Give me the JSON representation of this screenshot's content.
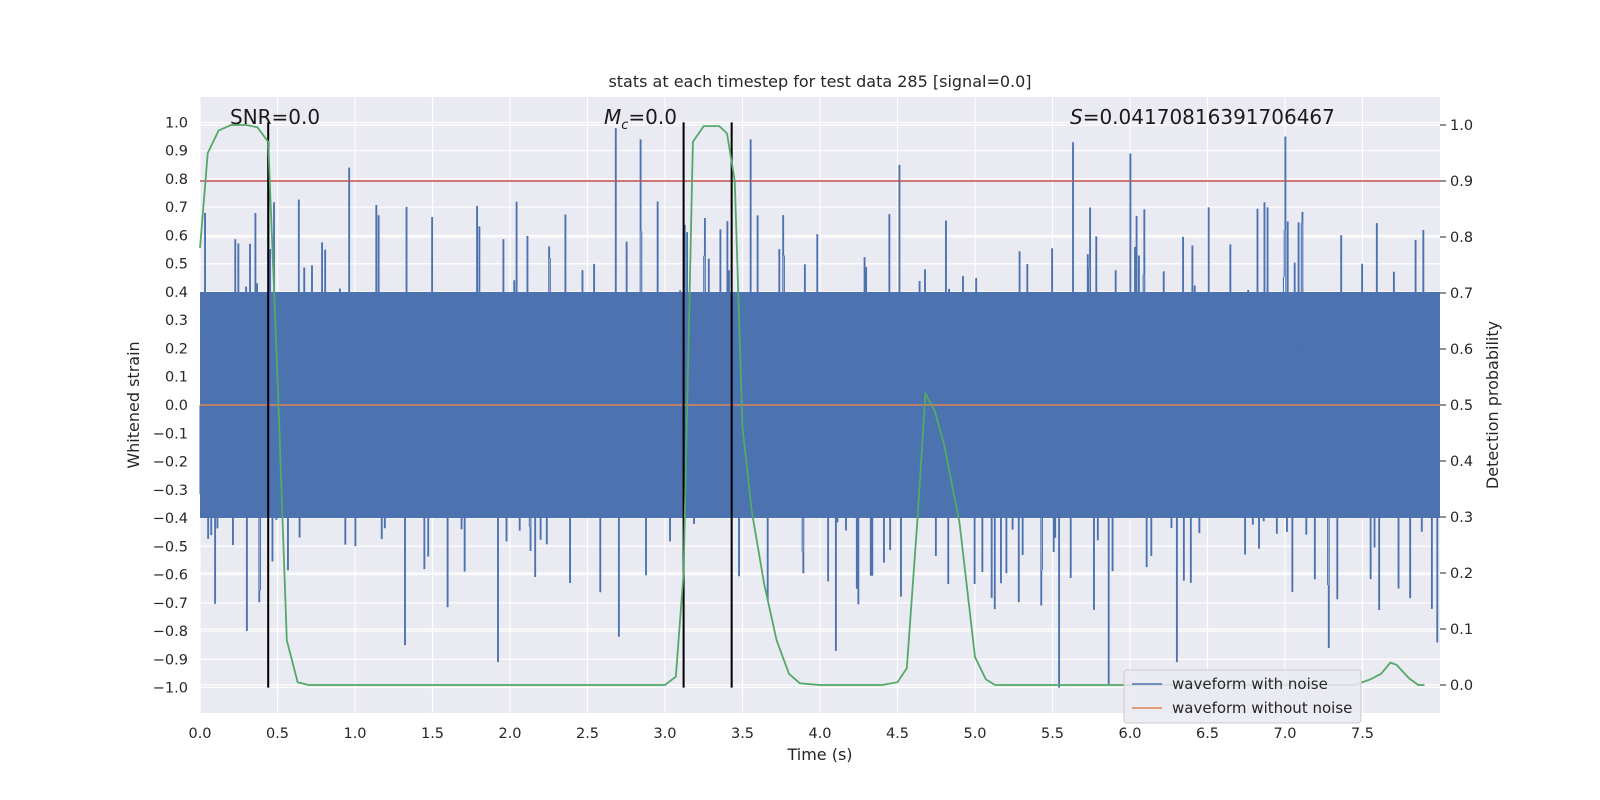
{
  "chart_data": {
    "type": "line",
    "title": "stats at each timestep for test data 285 [signal=0.0]",
    "xlabel": "Time (s)",
    "ylabel": "Whitened strain",
    "y2label": "Detection probability",
    "xlim": [
      0.0,
      8.0
    ],
    "ylim": [
      -1.09,
      1.09
    ],
    "y2lim": [
      -0.05,
      1.05
    ],
    "x_ticks": [
      0.0,
      0.5,
      1.0,
      1.5,
      2.0,
      2.5,
      3.0,
      3.5,
      4.0,
      4.5,
      5.0,
      5.5,
      6.0,
      6.5,
      7.0,
      7.5
    ],
    "x_tick_labels": [
      "0.0",
      "0.5",
      "1.0",
      "1.5",
      "2.0",
      "2.5",
      "3.0",
      "3.5",
      "4.0",
      "4.5",
      "5.0",
      "5.5",
      "6.0",
      "6.5",
      "7.0",
      "7.5"
    ],
    "y_ticks": [
      -1.0,
      -0.9,
      -0.8,
      -0.7,
      -0.6,
      -0.5,
      -0.4,
      -0.3,
      -0.2,
      -0.1,
      0.0,
      0.1,
      0.2,
      0.3,
      0.4,
      0.5,
      0.6,
      0.7,
      0.8,
      0.9,
      1.0
    ],
    "y_tick_labels": [
      "−1.0",
      "−0.9",
      "−0.8",
      "−0.7",
      "−0.6",
      "−0.5",
      "−0.4",
      "−0.3",
      "−0.2",
      "−0.1",
      "0.0",
      "0.1",
      "0.2",
      "0.3",
      "0.4",
      "0.5",
      "0.6",
      "0.7",
      "0.8",
      "0.9",
      "1.0"
    ],
    "y2_ticks": [
      0.0,
      0.1,
      0.2,
      0.3,
      0.4,
      0.5,
      0.6,
      0.7,
      0.8,
      0.9,
      1.0
    ],
    "y2_tick_labels": [
      "0.0",
      "0.1",
      "0.2",
      "0.3",
      "0.4",
      "0.5",
      "0.6",
      "0.7",
      "0.8",
      "0.9",
      "1.0"
    ],
    "grid": true,
    "threshold": 0.9,
    "vlines": [
      0.44,
      3.12,
      3.43
    ],
    "annotations": {
      "snr": "SNR=0.0",
      "mc_symbol": "M",
      "mc_sub": "c",
      "mc_value": "=0.0",
      "s_symbol": "S",
      "s_value": "=0.04170816391706467"
    },
    "legend": {
      "placement": "lower-right",
      "entries": [
        "waveform with noise",
        "waveform without noise"
      ]
    },
    "series": [
      {
        "name": "waveform with noise",
        "axis": "left",
        "kind": "noise",
        "band": [
          -0.4,
          0.4
        ],
        "samples": 1600,
        "spikes": [
          [
            0.03,
            0.68
          ],
          [
            0.44,
            0.93
          ],
          [
            0.96,
            0.84
          ],
          [
            2.68,
            0.98
          ],
          [
            2.84,
            0.94
          ],
          [
            3.55,
            0.94
          ],
          [
            4.51,
            0.85
          ],
          [
            5.63,
            0.93
          ],
          [
            6.0,
            0.89
          ],
          [
            7.0,
            0.95
          ],
          [
            0.3,
            -0.8
          ],
          [
            1.32,
            -0.85
          ],
          [
            1.92,
            -0.91
          ],
          [
            2.7,
            -0.82
          ],
          [
            4.1,
            -0.87
          ],
          [
            5.54,
            -1.0
          ],
          [
            5.86,
            -0.99
          ],
          [
            6.3,
            -0.91
          ],
          [
            7.28,
            -0.86
          ],
          [
            7.98,
            -0.84
          ]
        ]
      },
      {
        "name": "waveform without noise",
        "axis": "left",
        "values_constant": 0.0
      },
      {
        "name": "Detection probability",
        "axis": "right",
        "x": [
          0.0,
          0.05,
          0.12,
          0.2,
          0.3,
          0.37,
          0.44,
          0.5,
          0.56,
          0.63,
          0.7,
          1.0,
          2.0,
          2.9,
          3.0,
          3.07,
          3.12,
          3.18,
          3.25,
          3.35,
          3.4,
          3.45,
          3.5,
          3.56,
          3.64,
          3.72,
          3.8,
          3.87,
          4.0,
          4.4,
          4.5,
          4.56,
          4.63,
          4.68,
          4.74,
          4.8,
          4.9,
          5.0,
          5.07,
          5.13,
          5.3,
          6.0,
          7.0,
          7.45,
          7.55,
          7.62,
          7.68,
          7.72,
          7.8,
          7.86,
          7.9
        ],
        "values": [
          0.78,
          0.95,
          0.99,
          1.0,
          1.0,
          0.996,
          0.97,
          0.55,
          0.08,
          0.005,
          0.0,
          0.0,
          0.0,
          0.0,
          0.0,
          0.015,
          0.2,
          0.97,
          0.998,
          0.998,
          0.985,
          0.9,
          0.46,
          0.31,
          0.18,
          0.08,
          0.02,
          0.003,
          0.0,
          0.0,
          0.005,
          0.03,
          0.3,
          0.52,
          0.49,
          0.43,
          0.29,
          0.05,
          0.01,
          0.0,
          0.0,
          0.0,
          0.0,
          0.0,
          0.01,
          0.02,
          0.04,
          0.036,
          0.012,
          0.0,
          0.0
        ]
      }
    ]
  }
}
